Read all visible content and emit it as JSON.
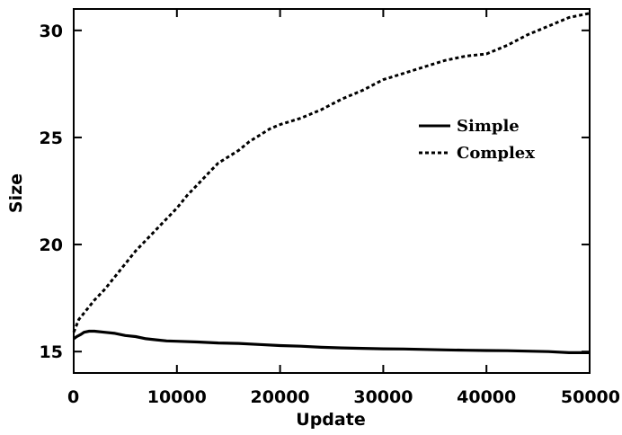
{
  "chart_data": {
    "type": "line",
    "title": "",
    "xlabel": "Update",
    "ylabel": "Size",
    "xlim": [
      0,
      50000
    ],
    "ylim": [
      14,
      31
    ],
    "xticks": [
      0,
      10000,
      20000,
      30000,
      40000,
      50000
    ],
    "xtick_labels": [
      "0",
      "10000",
      "20000",
      "30000",
      "40000",
      "50000"
    ],
    "yticks": [
      15,
      20,
      25,
      30
    ],
    "ytick_labels": [
      "15",
      "20",
      "25",
      "30"
    ],
    "grid": false,
    "legend_position": "center-right",
    "series": [
      {
        "name": "Simple",
        "style": "solid",
        "color": "#000000",
        "x": [
          0,
          300,
          700,
          1000,
          1500,
          2000,
          3000,
          4000,
          5000,
          6000,
          7000,
          8000,
          9000,
          10000,
          12000,
          14000,
          16000,
          18000,
          20000,
          22000,
          24000,
          26000,
          28000,
          30000,
          32000,
          34000,
          36000,
          38000,
          40000,
          42000,
          44000,
          46000,
          48000,
          50000
        ],
        "y": [
          15.6,
          15.7,
          15.8,
          15.9,
          15.95,
          15.95,
          15.9,
          15.85,
          15.75,
          15.7,
          15.6,
          15.55,
          15.5,
          15.48,
          15.45,
          15.4,
          15.38,
          15.33,
          15.28,
          15.25,
          15.2,
          15.17,
          15.15,
          15.13,
          15.12,
          15.1,
          15.08,
          15.06,
          15.05,
          15.04,
          15.02,
          15.0,
          14.95,
          14.95
        ]
      },
      {
        "name": "Complex",
        "style": "dashed",
        "color": "#000000",
        "x": [
          0,
          500,
          1000,
          2000,
          3000,
          4000,
          5000,
          6000,
          7000,
          8000,
          9000,
          10000,
          11000,
          12000,
          13000,
          14000,
          15000,
          16000,
          17000,
          18000,
          19000,
          20000,
          22000,
          24000,
          26000,
          28000,
          30000,
          32000,
          34000,
          36000,
          38000,
          40000,
          42000,
          44000,
          46000,
          48000,
          49000,
          50000
        ],
        "y": [
          15.9,
          16.5,
          16.8,
          17.4,
          17.9,
          18.5,
          19.1,
          19.7,
          20.2,
          20.7,
          21.2,
          21.7,
          22.3,
          22.8,
          23.3,
          23.8,
          24.1,
          24.4,
          24.8,
          25.1,
          25.4,
          25.6,
          25.9,
          26.3,
          26.8,
          27.2,
          27.7,
          28.0,
          28.3,
          28.6,
          28.8,
          28.9,
          29.3,
          29.8,
          30.2,
          30.6,
          30.7,
          30.8
        ]
      }
    ]
  }
}
